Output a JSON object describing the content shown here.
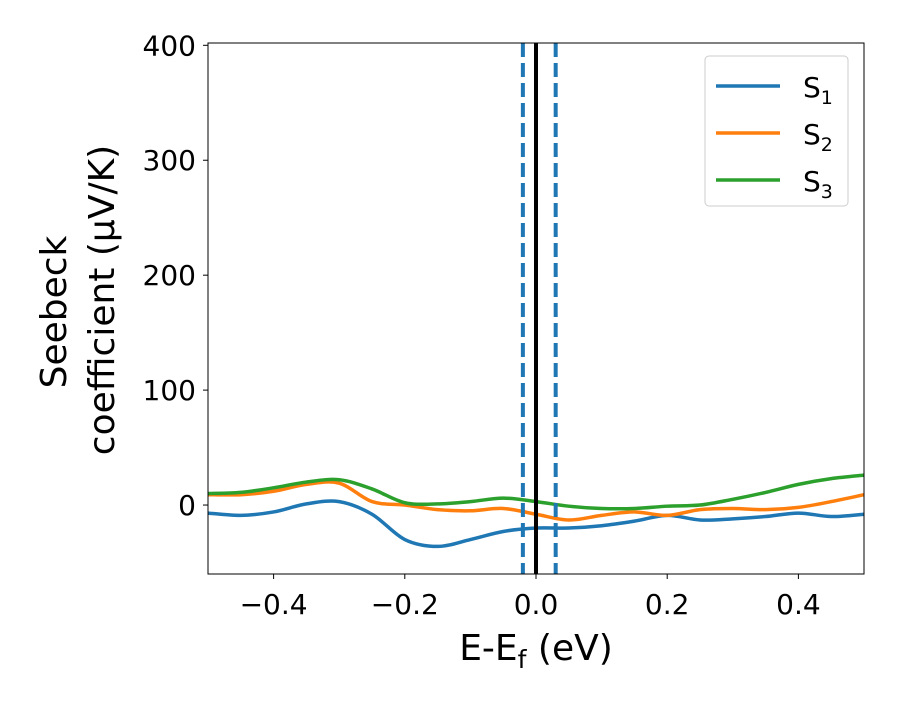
{
  "chart_data": {
    "type": "line",
    "xlabel": "E-E",
    "xlabel_sub": "f",
    "xlabel_unit": " (eV)",
    "ylabel_line1": "Seebeck",
    "ylabel_line2": "coefficient  (μV/K)",
    "xlim": [
      -0.5,
      0.5
    ],
    "ylim": [
      -60,
      402
    ],
    "xticks": [
      -0.4,
      -0.2,
      0.0,
      0.2,
      0.4
    ],
    "xtick_labels": [
      "−0.4",
      "−0.2",
      "0.0",
      "0.2",
      "0.4"
    ],
    "yticks": [
      0,
      100,
      200,
      300,
      400
    ],
    "ytick_labels": [
      "0",
      "100",
      "200",
      "300",
      "400"
    ],
    "grid": false,
    "legend_position": "top-right",
    "x": [
      -0.5,
      -0.45,
      -0.4,
      -0.35,
      -0.3,
      -0.25,
      -0.2,
      -0.15,
      -0.1,
      -0.05,
      0,
      0.05,
      0.1,
      0.15,
      0.2,
      0.25,
      0.3,
      0.35,
      0.4,
      0.45,
      0.5
    ],
    "series": [
      {
        "name": "S",
        "sub": "1",
        "color": "#1f77b4",
        "values": [
          -7,
          -9,
          -6,
          1,
          3,
          -8,
          -30,
          -36,
          -30,
          -23,
          -20,
          -20,
          -18,
          -14,
          -9,
          -13,
          -12,
          -10,
          -7,
          -10,
          -8
        ]
      },
      {
        "name": "S",
        "sub": "2",
        "color": "#ff7f0e",
        "values": [
          9,
          9,
          12,
          18,
          19,
          3,
          0,
          -4,
          -5,
          -3,
          -8,
          -13,
          -9,
          -6,
          -9,
          -4,
          -3,
          -4,
          -2,
          3,
          9
        ]
      },
      {
        "name": "S",
        "sub": "3",
        "color": "#2ca02c",
        "values": [
          10,
          11,
          15,
          20,
          22,
          14,
          2,
          1,
          3,
          6,
          3,
          -1,
          -3,
          -3,
          -1,
          0,
          5,
          11,
          18,
          23,
          26
        ]
      }
    ],
    "vlines": [
      {
        "x": 0.0,
        "color": "#000000",
        "style": "solid"
      },
      {
        "x": -0.02,
        "color": "#1f77b4",
        "style": "dashed"
      },
      {
        "x": 0.03,
        "color": "#1f77b4",
        "style": "dashed"
      }
    ]
  }
}
